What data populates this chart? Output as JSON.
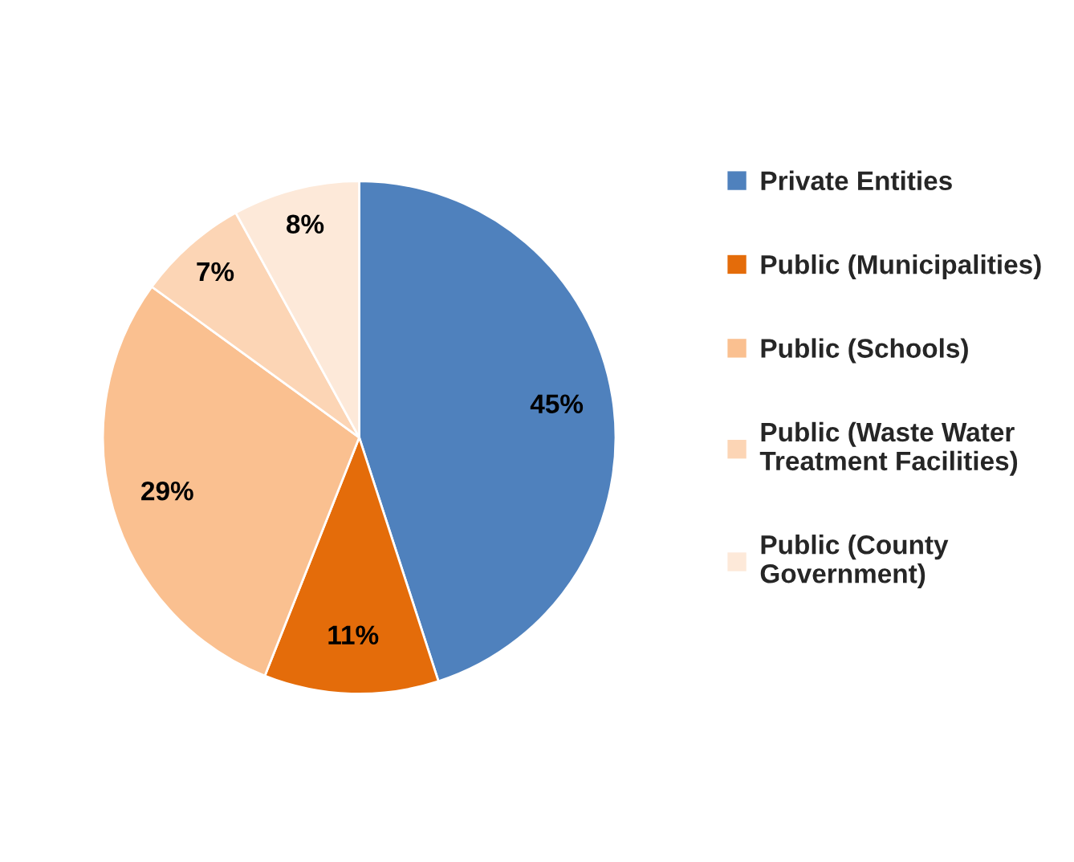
{
  "chart_data": {
    "type": "pie",
    "categories": [
      "Private Entities",
      "Public (Municipalities)",
      "Public (Schools)",
      "Public (Waste Water\nTreatment Facilities)",
      "Public (County\nGovernment)"
    ],
    "values": [
      45,
      11,
      29,
      7,
      8
    ],
    "colors": [
      "#4f81bd",
      "#e46c0a",
      "#fac090",
      "#fcd5b5",
      "#fde9d9"
    ],
    "value_labels": [
      "45%",
      "11%",
      "29%",
      "7%",
      "8%"
    ],
    "legend": "right"
  }
}
